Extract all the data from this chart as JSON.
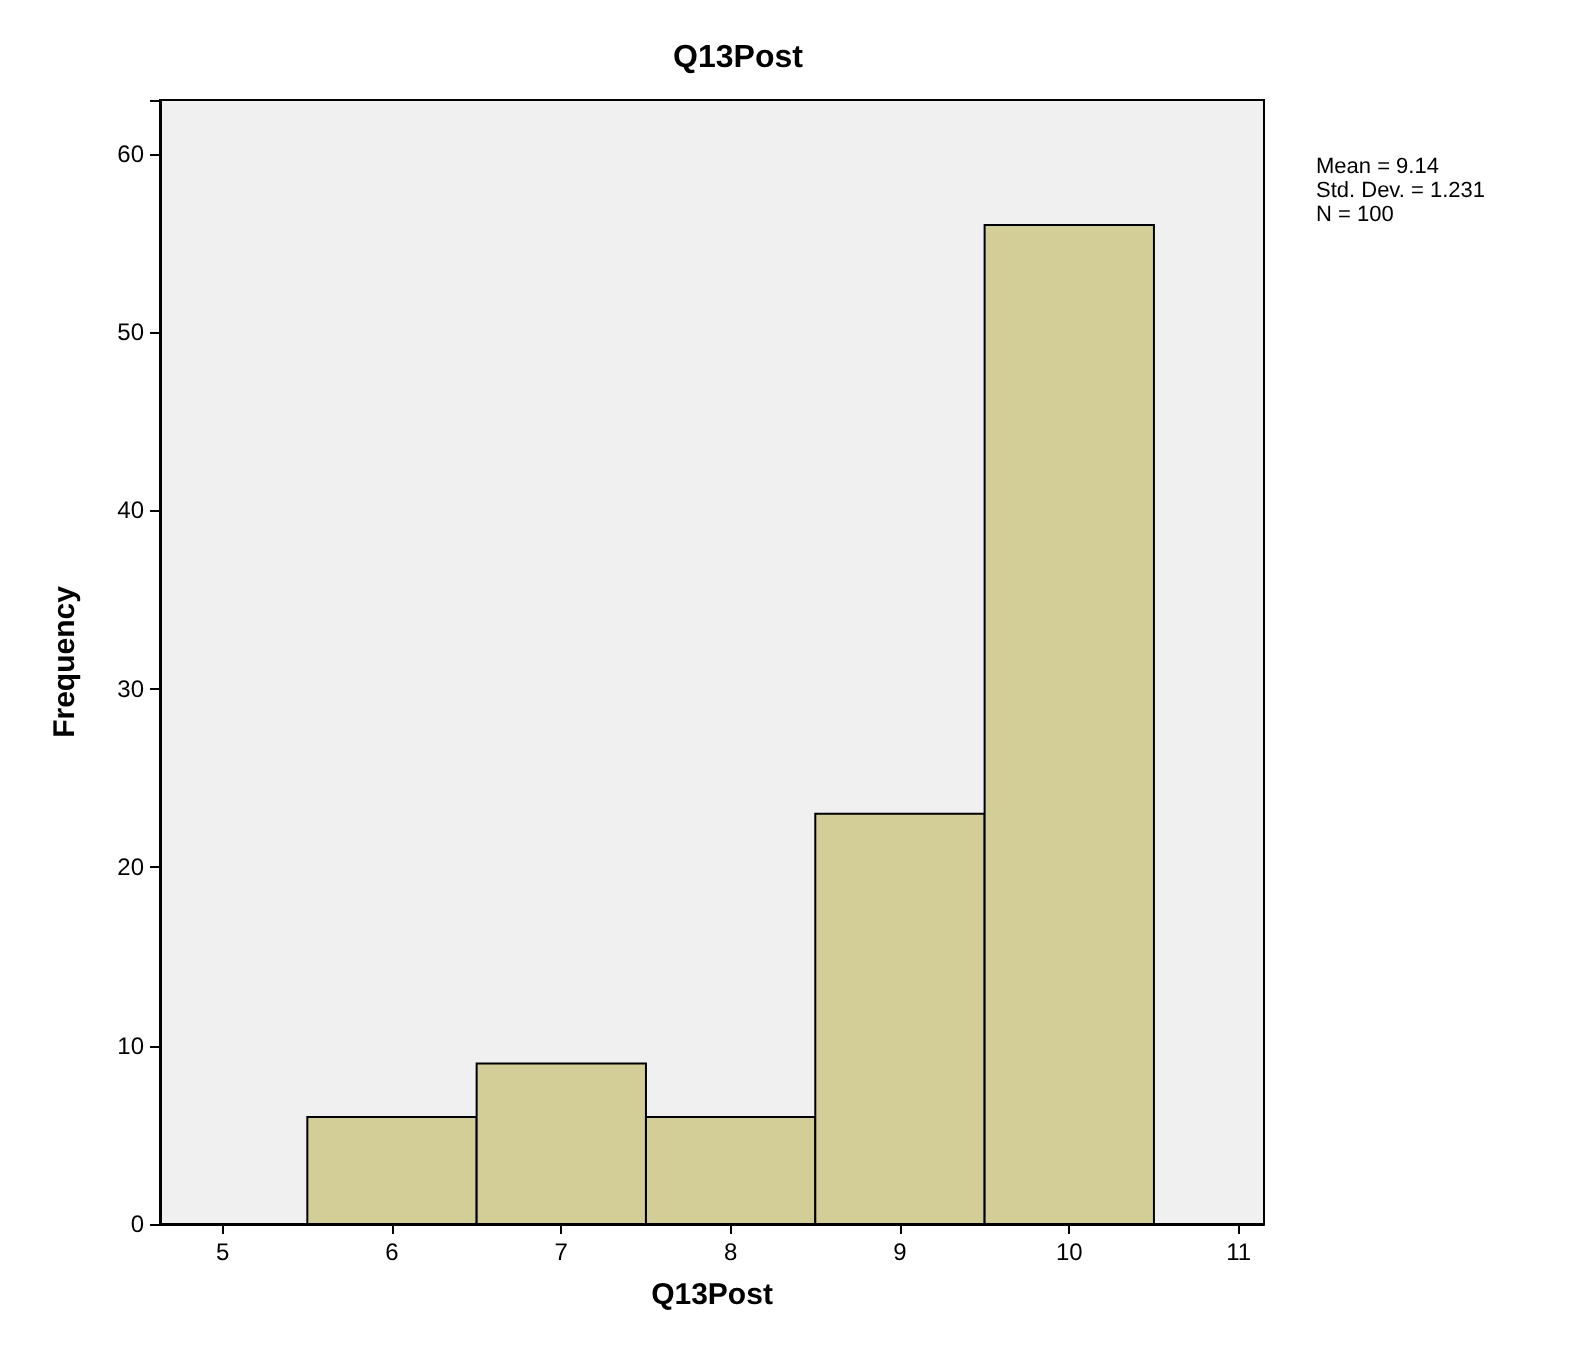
{
  "chart_data": {
    "type": "histogram",
    "title": "Q13Post",
    "xlabel": "Q13Post",
    "ylabel": "Frequency",
    "bins": [
      5.5,
      6.5,
      7.5,
      8.5,
      9.5,
      10.5
    ],
    "values": [
      6,
      9,
      6,
      23,
      56
    ],
    "color": "#d3ce97",
    "xlim": [
      4.63,
      11.15
    ],
    "xticks": [
      5,
      6,
      7,
      8,
      9,
      10,
      11
    ],
    "ylim": [
      0,
      63
    ],
    "yticks": [
      0,
      10,
      20,
      30,
      40,
      50,
      60
    ],
    "grid": false,
    "annotations": [
      "Mean = 9.14",
      "Std. Dev. = 1.231",
      "N = 100"
    ]
  }
}
